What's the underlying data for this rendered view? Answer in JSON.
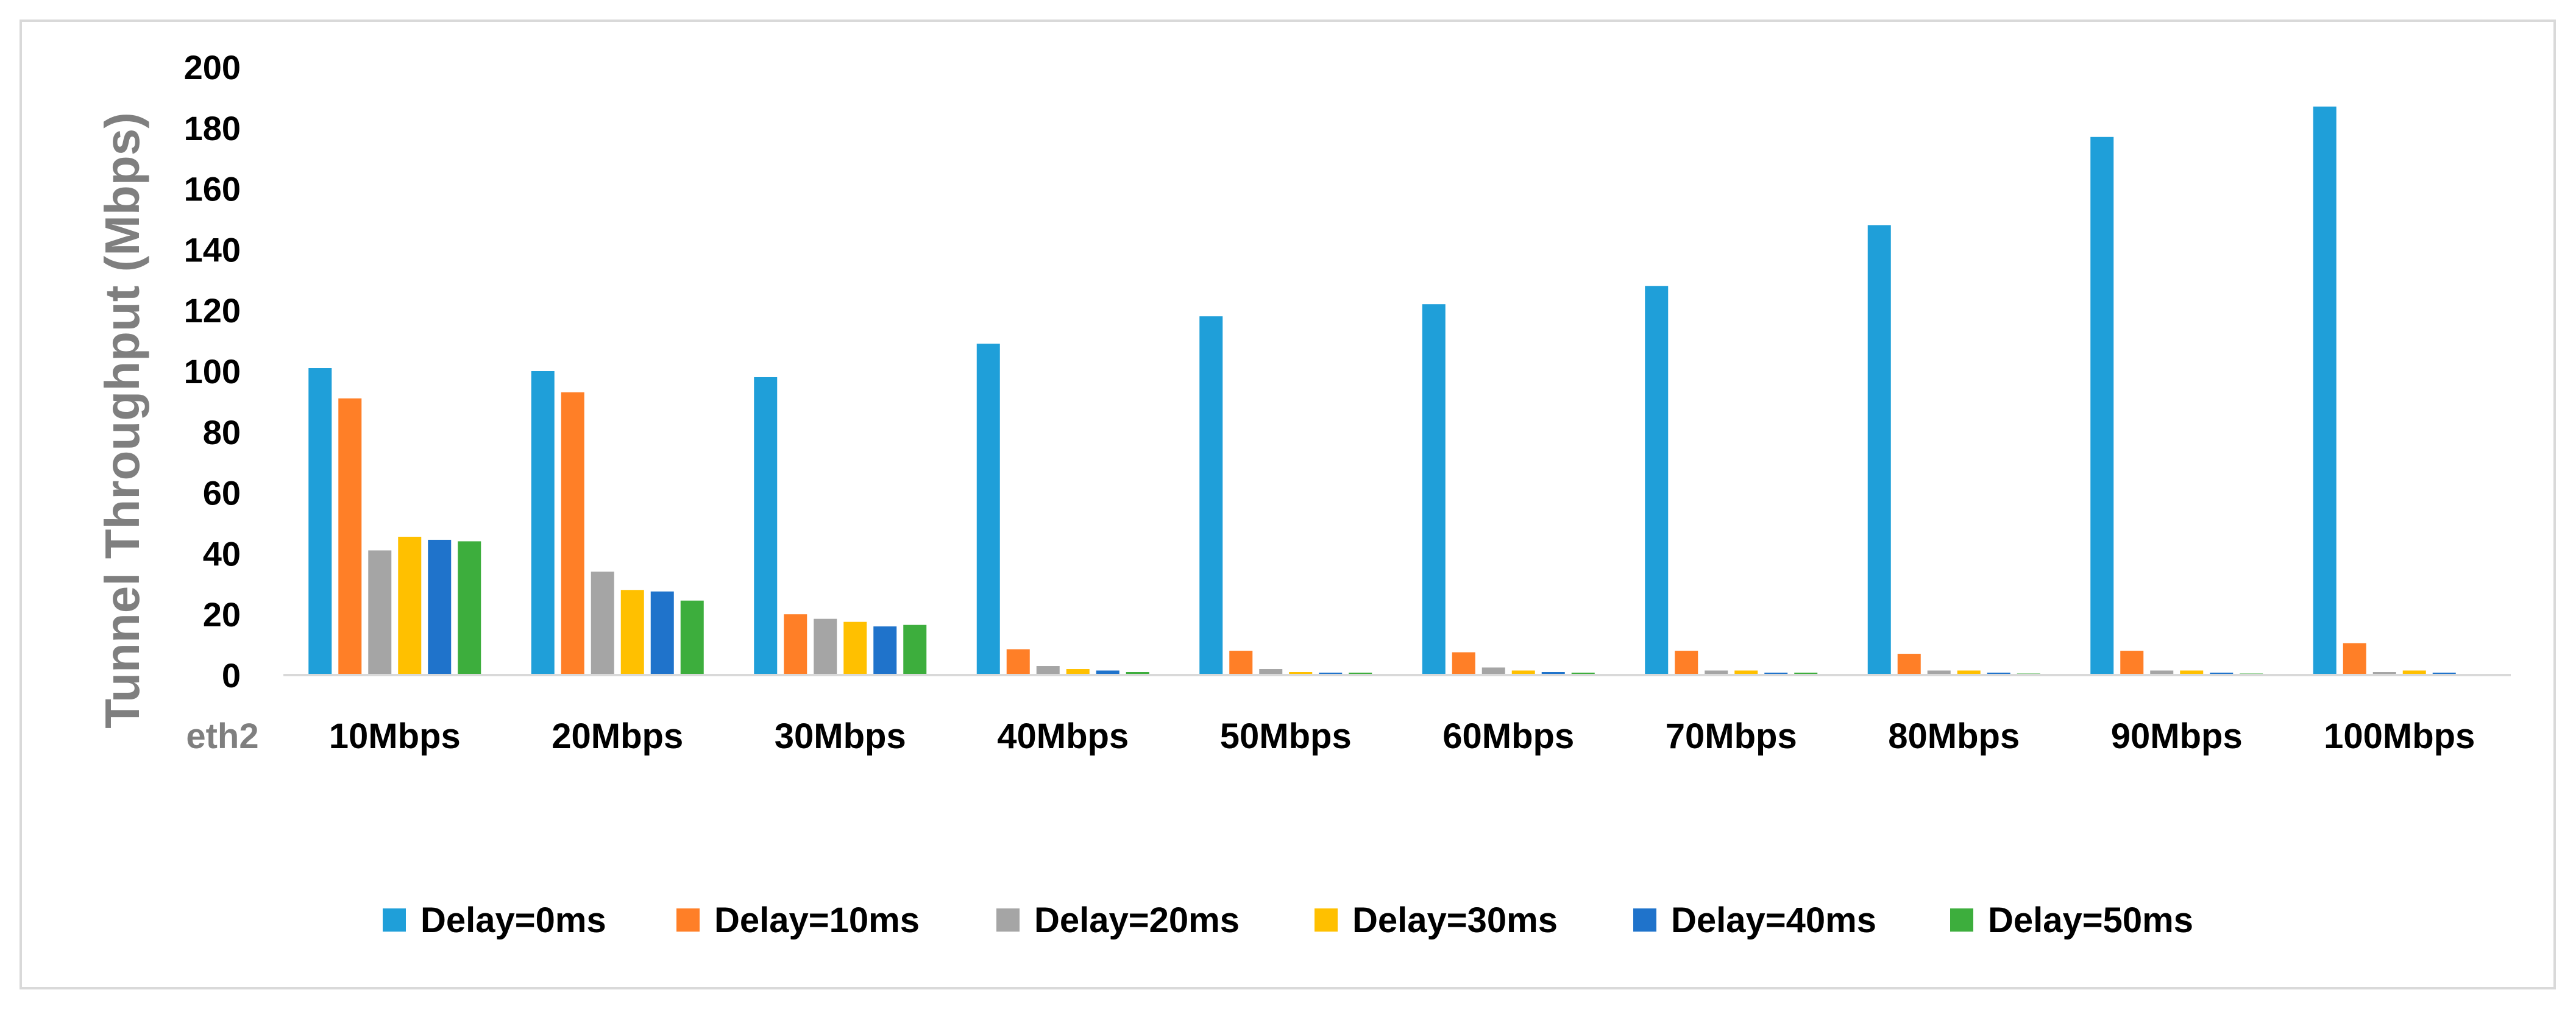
{
  "chart_data": {
    "type": "bar",
    "title": "",
    "ylabel": "Tunnel Throughput (Mbps)",
    "xlabel_prefix": "eth2",
    "categories": [
      "10Mbps",
      "20Mbps",
      "30Mbps",
      "40Mbps",
      "50Mbps",
      "60Mbps",
      "70Mbps",
      "80Mbps",
      "90Mbps",
      "100Mbps"
    ],
    "ylim": [
      0,
      200
    ],
    "yticks": [
      0,
      20,
      40,
      60,
      80,
      100,
      120,
      140,
      160,
      180,
      200
    ],
    "grid": false,
    "legend_position": "bottom",
    "series": [
      {
        "name": "Delay=0ms",
        "color": "#1F9FD9",
        "values": [
          101,
          100,
          98,
          109,
          118,
          122,
          128,
          148,
          177,
          187
        ]
      },
      {
        "name": "Delay=10ms",
        "color": "#FF7F27",
        "values": [
          91,
          93,
          20,
          8.5,
          8,
          7.5,
          8,
          7,
          8,
          10.5
        ]
      },
      {
        "name": "Delay=20ms",
        "color": "#A5A5A5",
        "values": [
          41,
          34,
          18.5,
          3,
          2,
          2.5,
          1.5,
          1.5,
          1.5,
          1
        ]
      },
      {
        "name": "Delay=30ms",
        "color": "#FFC000",
        "values": [
          45.5,
          28,
          17.5,
          2,
          1,
          1.5,
          1.5,
          1.5,
          1.5,
          1.5
        ]
      },
      {
        "name": "Delay=40ms",
        "color": "#1F73CB",
        "values": [
          44.5,
          27.5,
          16,
          1.5,
          0.8,
          1,
          0.8,
          0.8,
          0.8,
          0.8
        ]
      },
      {
        "name": "Delay=50ms",
        "color": "#3DAE3D",
        "values": [
          44,
          24.5,
          16.5,
          1,
          0.8,
          0.8,
          0.8,
          0.5,
          0.5,
          0
        ]
      }
    ]
  }
}
